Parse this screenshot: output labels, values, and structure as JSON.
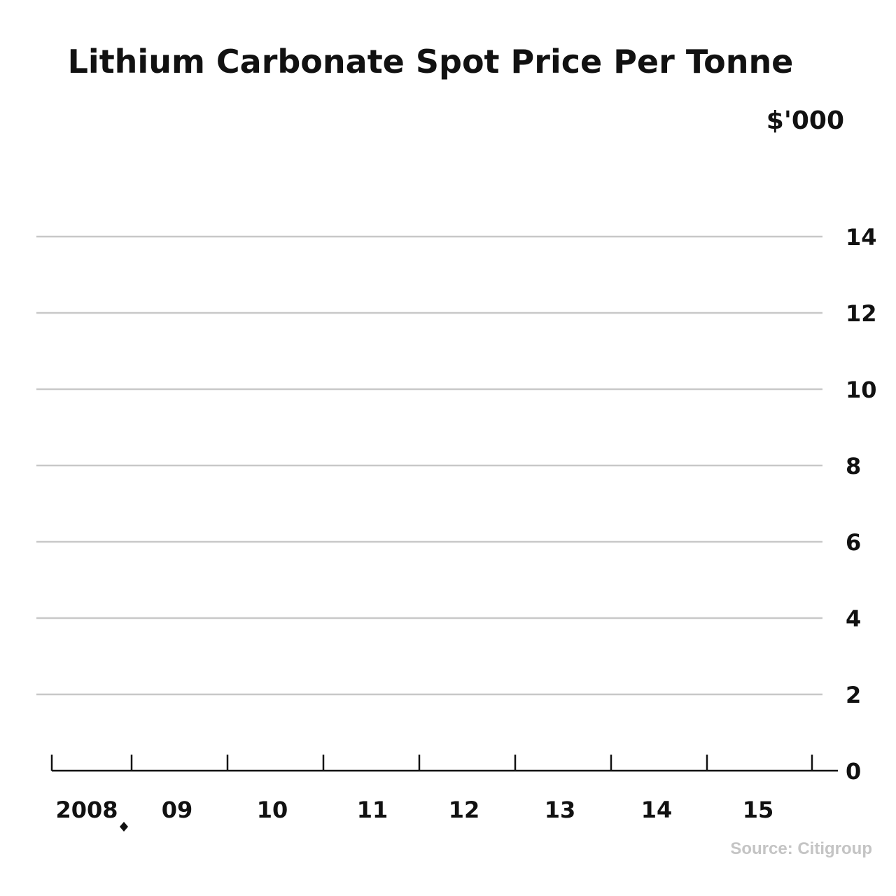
{
  "chart_data": {
    "type": "line",
    "title": "Lithium Carbonate Spot Price Per Tonne",
    "ylabel": "$'000",
    "xlabel": "",
    "ylim": [
      0,
      14
    ],
    "yticks": [
      "0",
      "2",
      "4",
      "6",
      "8",
      "10",
      "12",
      "14"
    ],
    "ytick_values": [
      0,
      2,
      4,
      6,
      8,
      10,
      12,
      14
    ],
    "categories": [
      "2008",
      "09",
      "10",
      "11",
      "12",
      "13",
      "14",
      "15"
    ],
    "series": [],
    "grid": true,
    "yaxis_side": "right",
    "annotation": "Source: Citigroup"
  }
}
